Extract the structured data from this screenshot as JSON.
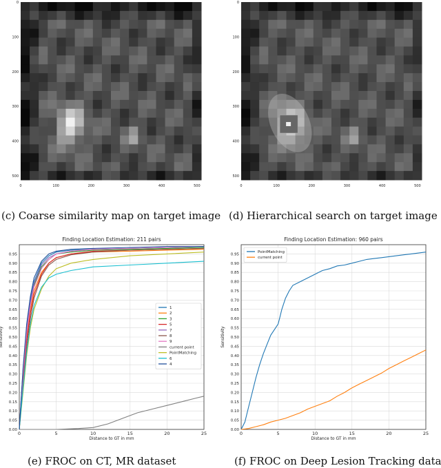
{
  "captions": {
    "c": "(c) Coarse similarity map on target image",
    "d": "(d) Hierarchical search on target image",
    "e": "(e) FROC on CT, MR dataset",
    "f": "(f) FROC on Deep Lesion Tracking dataset"
  },
  "heatmaps": {
    "ticks": [
      "0",
      "100",
      "200",
      "300",
      "400",
      "500"
    ],
    "palette": "grayscale"
  },
  "chart_data": [
    {
      "type": "line",
      "title": "Finding Location Estimation: 211 pairs",
      "xlabel": "Distance to GT in mm",
      "ylabel": "Sensitivity",
      "xlim": [
        0,
        25
      ],
      "ylim": [
        0,
        1.0
      ],
      "xticks": [
        0,
        5,
        10,
        15,
        20,
        25
      ],
      "yticks": [
        "0.00",
        "0.05",
        "0.10",
        "0.15",
        "0.20",
        "0.25",
        "0.30",
        "0.35",
        "0.40",
        "0.45",
        "0.50",
        "0.55",
        "0.60",
        "0.65",
        "0.70",
        "0.75",
        "0.80",
        "0.85",
        "0.90",
        "0.95"
      ],
      "grid": true,
      "legend": "center-right",
      "series": [
        {
          "name": "1",
          "color": "#1f77b4",
          "x": [
            0,
            0.5,
            1,
            1.5,
            2,
            3,
            4,
            5,
            7,
            10,
            15,
            20,
            25
          ],
          "y": [
            0,
            0.32,
            0.55,
            0.7,
            0.8,
            0.9,
            0.94,
            0.96,
            0.97,
            0.975,
            0.98,
            0.985,
            0.99
          ]
        },
        {
          "name": "2",
          "color": "#ff7f0e",
          "x": [
            0,
            0.5,
            1,
            1.5,
            2,
            3,
            4,
            5,
            7,
            10,
            15,
            20,
            25
          ],
          "y": [
            0,
            0.28,
            0.5,
            0.65,
            0.75,
            0.85,
            0.9,
            0.93,
            0.95,
            0.96,
            0.965,
            0.97,
            0.975
          ]
        },
        {
          "name": "3",
          "color": "#2ca02c",
          "x": [
            0,
            0.5,
            1,
            1.5,
            2,
            3,
            4,
            5,
            7,
            10,
            15,
            20,
            25
          ],
          "y": [
            0,
            0.3,
            0.53,
            0.68,
            0.78,
            0.88,
            0.92,
            0.95,
            0.96,
            0.97,
            0.975,
            0.98,
            0.985
          ]
        },
        {
          "name": "5",
          "color": "#d62728",
          "x": [
            0,
            0.5,
            1,
            1.5,
            2,
            3,
            4,
            5,
            7,
            10,
            15,
            20,
            25
          ],
          "y": [
            0,
            0.26,
            0.48,
            0.63,
            0.73,
            0.84,
            0.9,
            0.93,
            0.95,
            0.965,
            0.97,
            0.975,
            0.98
          ]
        },
        {
          "name": "7",
          "color": "#9467bd",
          "x": [
            0,
            0.5,
            1,
            1.5,
            2,
            3,
            4,
            5,
            7,
            10,
            15,
            20,
            25
          ],
          "y": [
            0,
            0.31,
            0.54,
            0.69,
            0.79,
            0.89,
            0.93,
            0.95,
            0.965,
            0.975,
            0.98,
            0.985,
            0.99
          ]
        },
        {
          "name": "8",
          "color": "#8c564b",
          "x": [
            0,
            0.5,
            1,
            1.5,
            2,
            3,
            4,
            5,
            7,
            10,
            15,
            20,
            25
          ],
          "y": [
            0,
            0.24,
            0.45,
            0.6,
            0.71,
            0.83,
            0.89,
            0.92,
            0.945,
            0.96,
            0.97,
            0.975,
            0.98
          ]
        },
        {
          "name": "9",
          "color": "#e377c2",
          "x": [
            0,
            0.5,
            1,
            1.5,
            2,
            3,
            4,
            5,
            7,
            10,
            15,
            20,
            25
          ],
          "y": [
            0,
            0.29,
            0.52,
            0.67,
            0.77,
            0.87,
            0.92,
            0.95,
            0.965,
            0.975,
            0.98,
            0.985,
            0.99
          ]
        },
        {
          "name": "current point",
          "color": "#7f7f7f",
          "x": [
            0,
            5,
            8,
            10,
            12,
            14,
            16,
            18,
            20,
            22,
            24,
            25
          ],
          "y": [
            0,
            0,
            0.005,
            0.01,
            0.03,
            0.06,
            0.09,
            0.11,
            0.13,
            0.15,
            0.17,
            0.18
          ]
        },
        {
          "name": "PointMatching",
          "color": "#bcbd22",
          "x": [
            0,
            0.5,
            1,
            1.5,
            2,
            3,
            4,
            5,
            7,
            10,
            15,
            20,
            25
          ],
          "y": [
            0,
            0.2,
            0.4,
            0.55,
            0.65,
            0.76,
            0.83,
            0.87,
            0.9,
            0.92,
            0.94,
            0.95,
            0.96
          ]
        },
        {
          "name": "6",
          "color": "#17becf",
          "x": [
            0,
            0.5,
            1,
            1.5,
            2,
            3,
            4,
            5,
            7,
            10,
            15,
            20,
            25
          ],
          "y": [
            0,
            0.22,
            0.42,
            0.57,
            0.67,
            0.77,
            0.82,
            0.84,
            0.86,
            0.88,
            0.89,
            0.9,
            0.91
          ]
        },
        {
          "name": "4",
          "color": "#1f4e9a",
          "x": [
            0,
            0.5,
            1,
            1.5,
            2,
            3,
            4,
            5,
            7,
            10,
            15,
            20,
            25
          ],
          "y": [
            0,
            0.33,
            0.57,
            0.72,
            0.82,
            0.91,
            0.95,
            0.965,
            0.975,
            0.98,
            0.985,
            0.99,
            0.99
          ]
        }
      ]
    },
    {
      "type": "line",
      "title": "Finding Location Estimation: 960 pairs",
      "xlabel": "Distance to GT in mm",
      "ylabel": "Sensitivity",
      "xlim": [
        0,
        25
      ],
      "ylim": [
        0,
        1.0
      ],
      "xticks": [
        0,
        5,
        10,
        15,
        20,
        25
      ],
      "yticks": [
        "0.00",
        "0.05",
        "0.10",
        "0.15",
        "0.20",
        "0.25",
        "0.30",
        "0.35",
        "0.40",
        "0.45",
        "0.50",
        "0.55",
        "0.60",
        "0.65",
        "0.70",
        "0.75",
        "0.80",
        "0.85",
        "0.90",
        "0.95"
      ],
      "grid": true,
      "legend": "top-left",
      "series": [
        {
          "name": "PointMatching",
          "color": "#1f77b4",
          "x": [
            0,
            0.5,
            1,
            1.5,
            2,
            2.5,
            3,
            3.5,
            4,
            4.5,
            5,
            5.2,
            5.5,
            6,
            6.5,
            7,
            8,
            9,
            10,
            11,
            12,
            13,
            14,
            15,
            16,
            17,
            18,
            19,
            20,
            21,
            22,
            23,
            24,
            25
          ],
          "y": [
            0,
            0.04,
            0.12,
            0.2,
            0.28,
            0.35,
            0.41,
            0.46,
            0.51,
            0.54,
            0.57,
            0.6,
            0.65,
            0.71,
            0.75,
            0.78,
            0.8,
            0.82,
            0.84,
            0.86,
            0.87,
            0.885,
            0.89,
            0.9,
            0.91,
            0.92,
            0.925,
            0.93,
            0.935,
            0.94,
            0.945,
            0.95,
            0.955,
            0.96
          ]
        },
        {
          "name": "current point",
          "color": "#ff7f0e",
          "x": [
            0,
            1,
            2,
            3,
            4,
            5,
            6,
            7,
            8,
            9,
            10,
            11,
            12,
            13,
            14,
            15,
            16,
            17,
            18,
            19,
            20,
            21,
            22,
            23,
            24,
            25
          ],
          "y": [
            0,
            0.005,
            0.015,
            0.025,
            0.04,
            0.05,
            0.06,
            0.075,
            0.09,
            0.11,
            0.125,
            0.14,
            0.155,
            0.18,
            0.2,
            0.225,
            0.245,
            0.265,
            0.285,
            0.305,
            0.33,
            0.35,
            0.37,
            0.39,
            0.41,
            0.43
          ]
        }
      ]
    }
  ]
}
